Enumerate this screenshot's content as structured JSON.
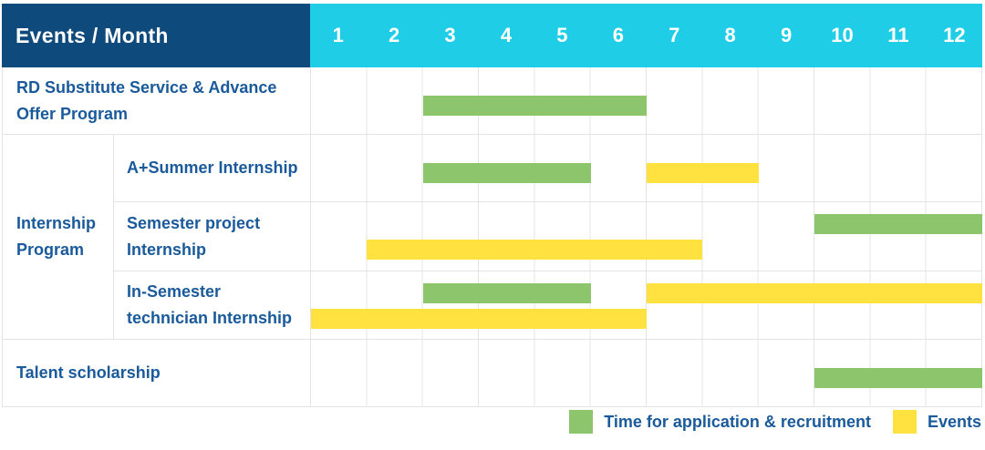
{
  "header": {
    "title": "Events / Month",
    "months": [
      "1",
      "2",
      "3",
      "4",
      "5",
      "6",
      "7",
      "8",
      "9",
      "10",
      "11",
      "12"
    ]
  },
  "colors": {
    "navy": "#0F4A7D",
    "cyan": "#1FCDE6",
    "green": "#8CC56C",
    "yellow": "#FFE23F",
    "blue": "#1A5A9B",
    "grid": "#E4E4E4"
  },
  "chart_data": {
    "type": "gantt",
    "unit": "month",
    "x_range": [
      1,
      12
    ],
    "x_ticks": [
      "1",
      "2",
      "3",
      "4",
      "5",
      "6",
      "7",
      "8",
      "9",
      "10",
      "11",
      "12"
    ],
    "corner_header": "Events / Month",
    "legend": {
      "green": "Time for application & recruitment",
      "yellow": "Events"
    },
    "rows": [
      {
        "label": "RD Substitute Service & Advance Offer Program",
        "group": null,
        "spans": [
          {
            "type": "application_recruitment",
            "color": "green",
            "start_month": 3,
            "end_month": 6
          }
        ]
      },
      {
        "label": "A+Summer Internship",
        "group": "Internship Program",
        "spans": [
          {
            "type": "application_recruitment",
            "color": "green",
            "start_month": 3,
            "end_month": 5
          },
          {
            "type": "event",
            "color": "yellow",
            "start_month": 7,
            "end_month": 8
          }
        ]
      },
      {
        "label": "Semester project Internship",
        "group": "Internship Program",
        "spans": [
          {
            "type": "application_recruitment",
            "color": "green",
            "start_month": 10,
            "end_month": 12
          },
          {
            "type": "event",
            "color": "yellow",
            "start_month": 2,
            "end_month": 7
          }
        ]
      },
      {
        "label": "In-Semester technician Internship",
        "group": "Internship Program",
        "spans": [
          {
            "type": "application_recruitment",
            "color": "green",
            "start_month": 3,
            "end_month": 5
          },
          {
            "type": "event",
            "color": "yellow",
            "start_month": 7,
            "end_month": 12
          },
          {
            "type": "event",
            "color": "yellow",
            "start_month": 1,
            "end_month": 6
          }
        ]
      },
      {
        "label": "Talent scholarship",
        "group": null,
        "spans": [
          {
            "type": "application_recruitment",
            "color": "green",
            "start_month": 10,
            "end_month": 12
          }
        ]
      }
    ]
  }
}
